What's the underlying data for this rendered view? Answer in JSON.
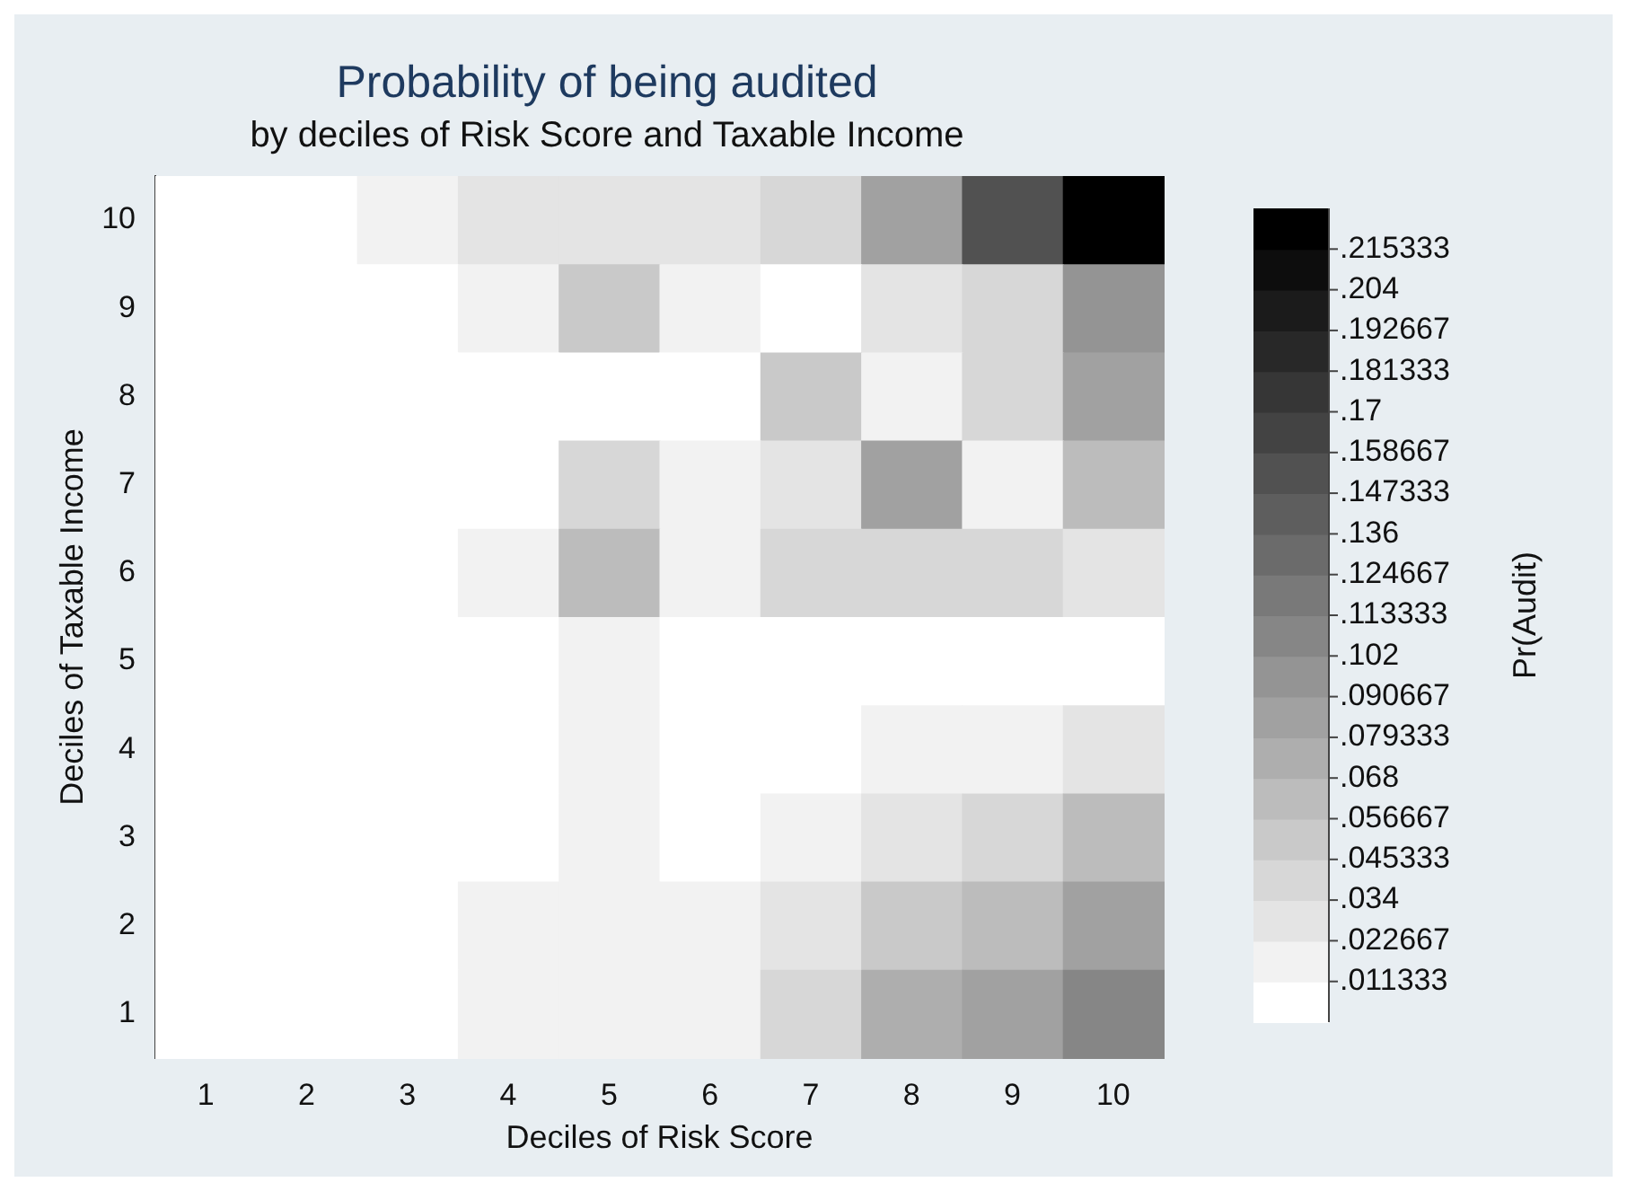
{
  "chart_data": {
    "type": "heatmap",
    "title": "Probability of being audited",
    "subtitle": "by deciles of Risk Score and Taxable Income",
    "xlabel": "Deciles of Risk Score",
    "ylabel": "Deciles of Taxable Income",
    "clabel": "Pr(Audit)",
    "categories": [
      "1",
      "2",
      "3",
      "4",
      "5",
      "6",
      "7",
      "8",
      "9",
      "10"
    ],
    "y_categories": [
      "10",
      "9",
      "8",
      "7",
      "6",
      "5",
      "4",
      "3",
      "2",
      "1"
    ],
    "cells": [
      [
        0,
        0,
        0.015,
        0.025,
        0.025,
        0.025,
        0.04,
        0.08,
        0.15,
        0.22
      ],
      [
        0,
        0,
        0.01,
        0.015,
        0.05,
        0.02,
        0.008,
        0.025,
        0.045,
        0.1
      ],
      [
        0,
        0,
        0,
        0,
        0.008,
        0.01,
        0.05,
        0.02,
        0.04,
        0.08
      ],
      [
        0,
        0,
        0,
        0,
        0.04,
        0.012,
        0.025,
        0.085,
        0.018,
        0.06
      ],
      [
        0,
        0,
        0,
        0.012,
        0.06,
        0.012,
        0.04,
        0.04,
        0.035,
        0.025
      ],
      [
        0,
        0,
        0,
        0,
        0.012,
        0.005,
        0.005,
        0,
        0,
        0
      ],
      [
        0,
        0,
        0,
        0.005,
        0.015,
        0.005,
        0.005,
        0.012,
        0.02,
        0.025
      ],
      [
        0,
        0,
        0,
        0.008,
        0.015,
        0.008,
        0.015,
        0.03,
        0.045,
        0.06
      ],
      [
        0,
        0,
        0.005,
        0.012,
        0.015,
        0.012,
        0.03,
        0.05,
        0.065,
        0.085
      ],
      [
        0,
        0,
        0,
        0.015,
        0.015,
        0.02,
        0.04,
        0.07,
        0.09,
        0.11
      ]
    ],
    "clim": [
      0,
      0.226667
    ],
    "cticks": [
      {
        "value": 0.011333,
        "label": ".011333"
      },
      {
        "value": 0.022667,
        "label": ".022667"
      },
      {
        "value": 0.034,
        "label": ".034"
      },
      {
        "value": 0.045333,
        "label": ".045333"
      },
      {
        "value": 0.056667,
        "label": ".056667"
      },
      {
        "value": 0.068,
        "label": ".068"
      },
      {
        "value": 0.079333,
        "label": ".079333"
      },
      {
        "value": 0.090667,
        "label": ".090667"
      },
      {
        "value": 0.102,
        "label": ".102"
      },
      {
        "value": 0.113333,
        "label": ".113333"
      },
      {
        "value": 0.124667,
        "label": ".124667"
      },
      {
        "value": 0.136,
        "label": ".136"
      },
      {
        "value": 0.147333,
        "label": ".147333"
      },
      {
        "value": 0.158667,
        "label": ".158667"
      },
      {
        "value": 0.17,
        "label": ".17"
      },
      {
        "value": 0.181333,
        "label": ".181333"
      },
      {
        "value": 0.192667,
        "label": ".192667"
      },
      {
        "value": 0.204,
        "label": ".204"
      },
      {
        "value": 0.215333,
        "label": ".215333"
      }
    ]
  }
}
